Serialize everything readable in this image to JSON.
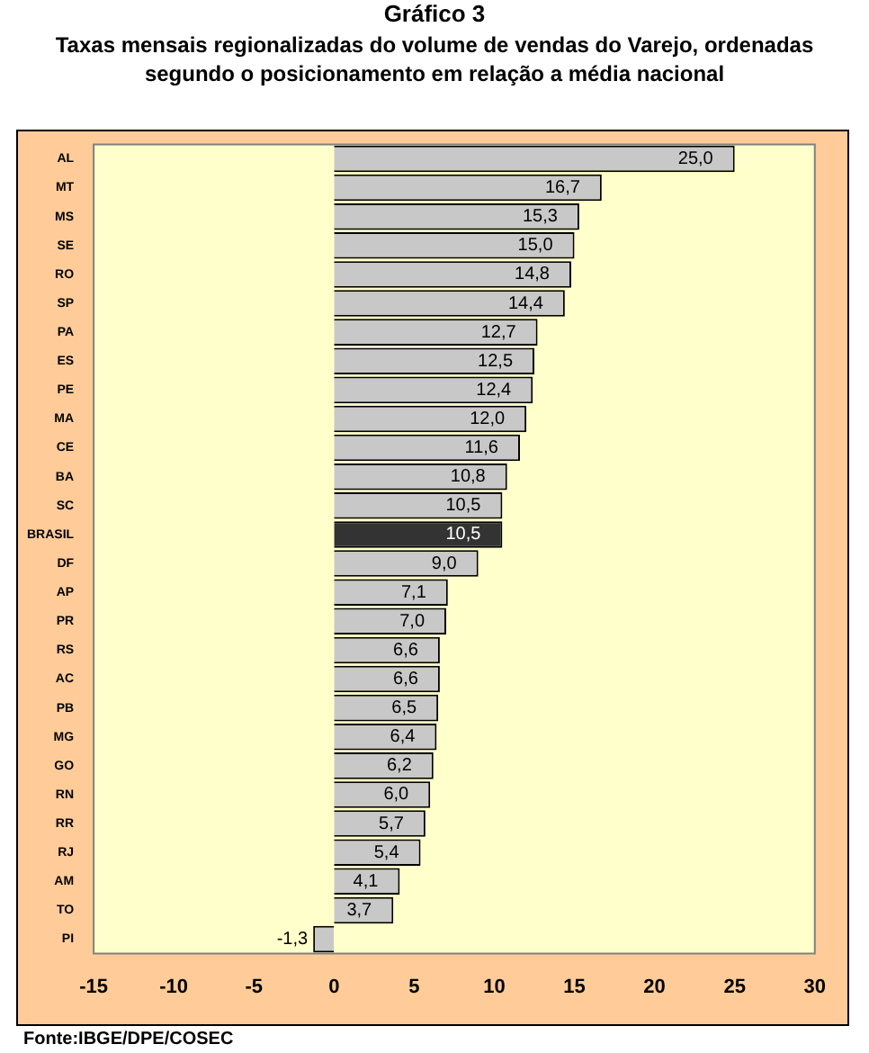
{
  "chart_data": {
    "type": "bar",
    "orientation": "horizontal",
    "title": "Gráfico 3",
    "subtitle": "Taxas mensais regionalizadas  do volume de vendas do Varejo, ordenadas segundo o posicionamento em relação a média nacional",
    "categories": [
      "AL",
      "MT",
      "MS",
      "SE",
      "RO",
      "SP",
      "PA",
      "ES",
      "PE",
      "MA",
      "CE",
      "BA",
      "SC",
      "BRASIL",
      "DF",
      "AP",
      "PR",
      "RS",
      "AC",
      "PB",
      "MG",
      "GO",
      "RN",
      "RR",
      "RJ",
      "AM",
      "TO",
      "PI"
    ],
    "values": [
      25.0,
      16.7,
      15.3,
      15.0,
      14.8,
      14.4,
      12.7,
      12.5,
      12.4,
      12.0,
      11.6,
      10.8,
      10.5,
      10.5,
      9.0,
      7.1,
      7.0,
      6.6,
      6.6,
      6.5,
      6.4,
      6.2,
      6.0,
      5.7,
      5.4,
      4.1,
      3.7,
      -1.3
    ],
    "value_labels": [
      "25,0",
      "16,7",
      "15,3",
      "15,0",
      "14,8",
      "14,4",
      "12,7",
      "12,5",
      "12,4",
      "12,0",
      "11,6",
      "10,8",
      "10,5",
      "10,5",
      "9,0",
      "7,1",
      "7,0",
      "6,6",
      "6,6",
      "6,5",
      "6,4",
      "6,2",
      "6,0",
      "5,7",
      "5,4",
      "4,1",
      "3,7",
      "-1,3"
    ],
    "colors": [
      "#c8c8c8",
      "#c8c8c8",
      "#c8c8c8",
      "#c8c8c8",
      "#c8c8c8",
      "#c8c8c8",
      "#c8c8c8",
      "#c8c8c8",
      "#c8c8c8",
      "#c8c8c8",
      "#c8c8c8",
      "#c8c8c8",
      "#c8c8c8",
      "#333333",
      "#c8c8c8",
      "#c8c8c8",
      "#c8c8c8",
      "#c8c8c8",
      "#c8c8c8",
      "#c8c8c8",
      "#c8c8c8",
      "#c8c8c8",
      "#c8c8c8",
      "#c8c8c8",
      "#c8c8c8",
      "#c8c8c8",
      "#c8c8c8",
      "#c8c8c8"
    ],
    "xlim": [
      -15,
      30
    ],
    "xticks": [
      -15,
      -10,
      -5,
      0,
      5,
      10,
      15,
      20,
      25,
      30
    ],
    "grid": false,
    "legend": false,
    "annotations": [
      "Fonte:IBGE/DPE/COSEC"
    ]
  }
}
